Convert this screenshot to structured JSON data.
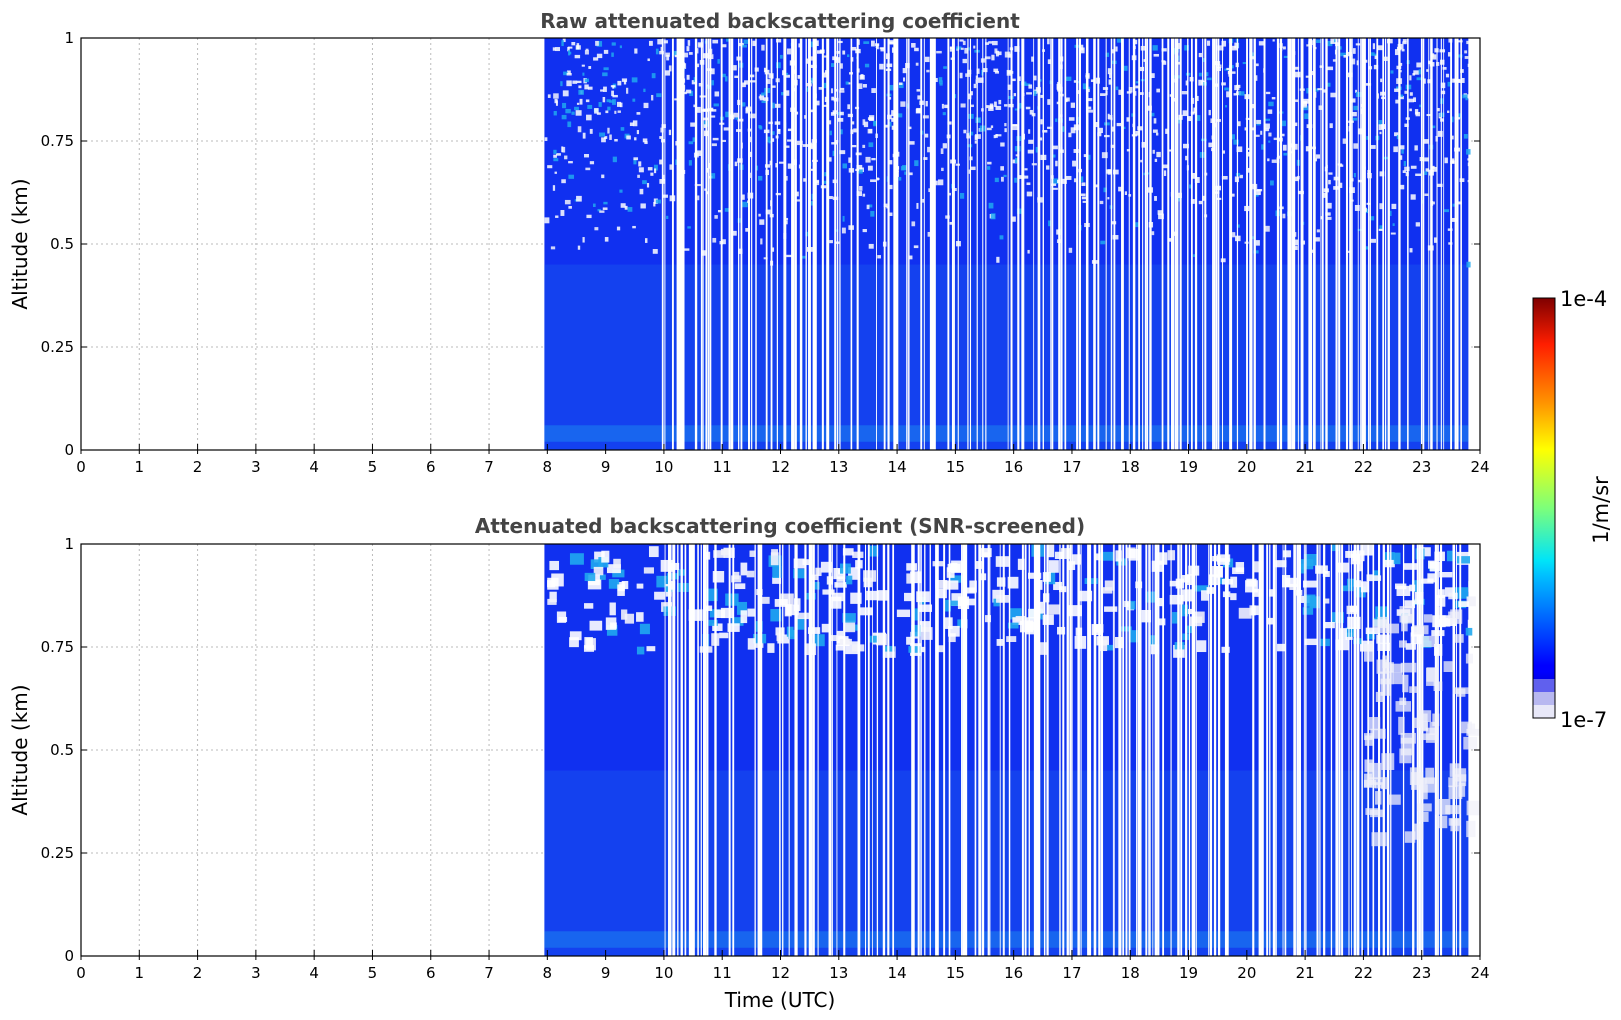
{
  "chart_data": [
    {
      "type": "heatmap",
      "title": "Raw attenuated backscattering coefficient",
      "xlabel": "",
      "ylabel": "Altitude (km)",
      "xlim": [
        0,
        24
      ],
      "ylim": [
        0,
        1
      ],
      "xticks": [
        "0",
        "1",
        "2",
        "3",
        "4",
        "5",
        "6",
        "7",
        "8",
        "9",
        "10",
        "11",
        "12",
        "13",
        "14",
        "15",
        "16",
        "17",
        "18",
        "19",
        "20",
        "21",
        "22",
        "23",
        "24"
      ],
      "yticks": [
        {
          "value": 0,
          "label": "0"
        },
        {
          "value": 0.25,
          "label": "0.25"
        },
        {
          "value": 0.5,
          "label": "0.5"
        },
        {
          "value": 0.75,
          "label": "0.75"
        },
        {
          "value": 1,
          "label": "1"
        }
      ],
      "grid": true,
      "data_start_hour": 7.95,
      "data_end_hour": 23.8,
      "screened": false
    },
    {
      "type": "heatmap",
      "title": "Attenuated backscattering coefficient (SNR-screened)",
      "xlabel": "Time (UTC)",
      "ylabel": "Altitude (km)",
      "xlim": [
        0,
        24
      ],
      "ylim": [
        0,
        1
      ],
      "xticks": [
        "0",
        "1",
        "2",
        "3",
        "4",
        "5",
        "6",
        "7",
        "8",
        "9",
        "10",
        "11",
        "12",
        "13",
        "14",
        "15",
        "16",
        "17",
        "18",
        "19",
        "20",
        "21",
        "22",
        "23",
        "24"
      ],
      "yticks": [
        {
          "value": 0,
          "label": "0"
        },
        {
          "value": 0.25,
          "label": "0.25"
        },
        {
          "value": 0.5,
          "label": "0.5"
        },
        {
          "value": 0.75,
          "label": "0.75"
        },
        {
          "value": 1,
          "label": "1"
        }
      ],
      "grid": true,
      "data_start_hour": 7.95,
      "data_end_hour": 23.8,
      "screened": true
    }
  ],
  "colorbar": {
    "label": "1/m/sr",
    "max_label": "1e-4",
    "min_label": "1e-7",
    "colormap": "jet",
    "low_end_colors": [
      "#e8e8f8",
      "#b8b8f0",
      "#6060ee"
    ]
  },
  "colors": {
    "data_blue": "#1030f0",
    "data_deep_blue": "#0a18e8",
    "data_mid_blue": "#1850ee",
    "data_cyan": "#20a8f0",
    "surface_cyan": "#30c0e8",
    "screened_white": "#f2f2fa",
    "grid": "#bbbbbb"
  }
}
